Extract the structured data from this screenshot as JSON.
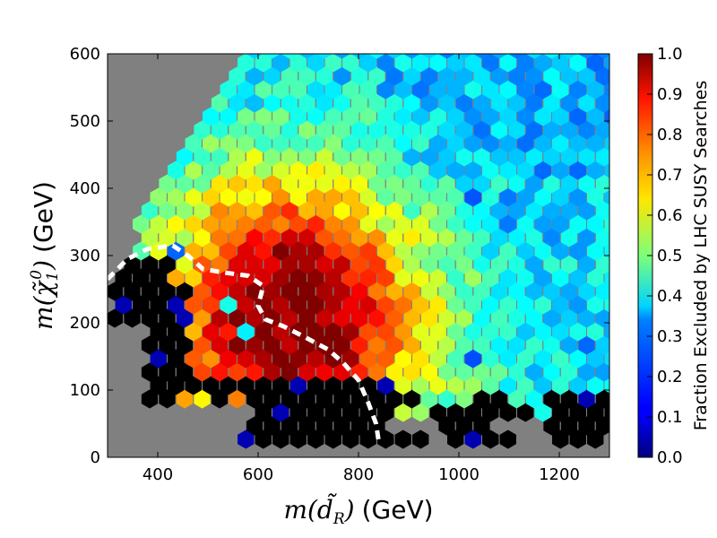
{
  "chart_data": {
    "type": "heatmap",
    "subtype": "hexbin",
    "xlabel": {
      "math": "m(d̃",
      "sub": "R",
      "close": ")",
      "unit": "(GeV)"
    },
    "ylabel": {
      "math": "m(χ̃",
      "sub": "1",
      "sup": "0",
      "close": ")",
      "unit": "(GeV)"
    },
    "xlim": [
      300,
      1300
    ],
    "ylim": [
      0,
      600
    ],
    "xticks": [
      "400",
      "600",
      "800",
      "1000",
      "1200"
    ],
    "xtick_values": [
      400,
      600,
      800,
      1000,
      1200
    ],
    "yticks": [
      "0",
      "100",
      "200",
      "300",
      "400",
      "500",
      "600"
    ],
    "ytick_values": [
      0,
      100,
      200,
      300,
      400,
      500,
      600
    ],
    "colorbar": {
      "label": "Fraction Excluded by LHC SUSY Searches",
      "range": [
        0.0,
        1.0
      ],
      "ticks": [
        "0.0",
        "0.1",
        "0.2",
        "0.3",
        "0.4",
        "0.5",
        "0.6",
        "0.7",
        "0.8",
        "0.9",
        "1.0"
      ],
      "tick_values": [
        0,
        0.1,
        0.2,
        0.3,
        0.4,
        0.5,
        0.6,
        0.7,
        0.8,
        0.9,
        1.0
      ],
      "colormap": "jet"
    },
    "background_color": "#808080",
    "no_data_color": "#000000",
    "contour": {
      "style": "white dashed",
      "points": [
        [
          300,
          265
        ],
        [
          340,
          295
        ],
        [
          380,
          310
        ],
        [
          430,
          315
        ],
        [
          460,
          300
        ],
        [
          490,
          280
        ],
        [
          530,
          275
        ],
        [
          580,
          270
        ],
        [
          610,
          255
        ],
        [
          600,
          225
        ],
        [
          615,
          205
        ],
        [
          650,
          195
        ],
        [
          690,
          180
        ],
        [
          740,
          160
        ],
        [
          770,
          140
        ],
        [
          800,
          115
        ],
        [
          820,
          80
        ],
        [
          835,
          50
        ],
        [
          840,
          25
        ]
      ]
    },
    "description_of_field": {
      "valid_region_diagonal": "upper-left boundary from (300, ~265) rising to (~570, 600)",
      "high_fraction_region": "near lower-left, x 550-800, y 100-300, values ~0.9-1.0",
      "low_fraction_region": "upper-right, x 850-1300, y 400-600, values ~0.3-0.5"
    }
  }
}
